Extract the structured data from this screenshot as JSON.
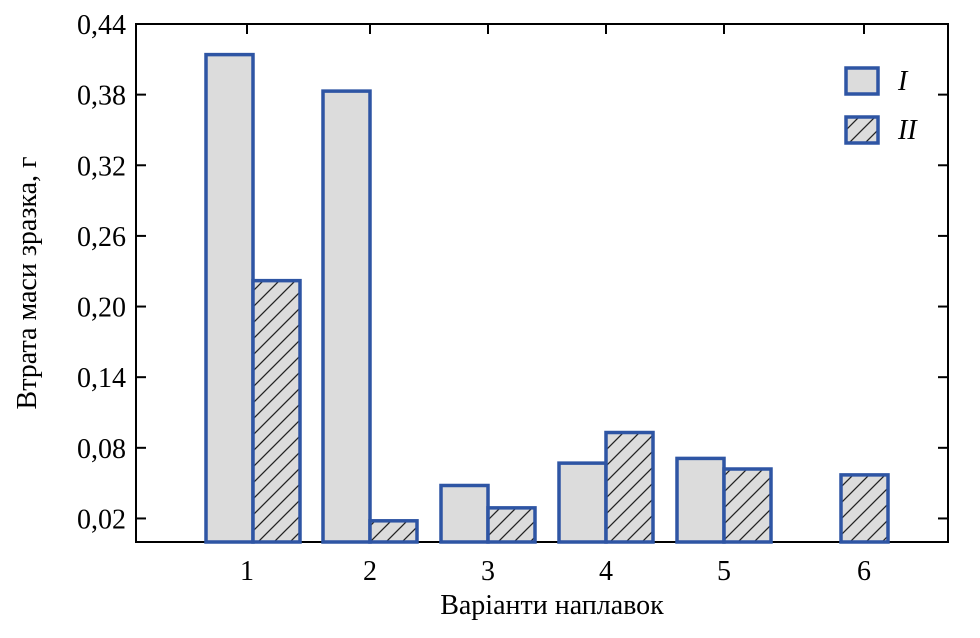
{
  "chart_data": {
    "type": "bar",
    "title": "",
    "xlabel": "Варіанти наплавок",
    "ylabel": "Втрата маси зразка, г",
    "categories": [
      "1",
      "2",
      "3",
      "4",
      "5",
      "6"
    ],
    "ylim": [
      0,
      0.44
    ],
    "yticks": [
      0.02,
      0.08,
      0.14,
      0.2,
      0.26,
      0.32,
      0.38,
      0.44
    ],
    "ytick_labels": [
      "0,02",
      "0,08",
      "0,14",
      "0,20",
      "0,26",
      "0,32",
      "0,38",
      "0,44"
    ],
    "series": [
      {
        "name": "I",
        "values": [
          0.414,
          0.383,
          0.048,
          0.067,
          0.071,
          null
        ],
        "fill": "#dcdcdc",
        "stroke": "#2e55a4",
        "pattern": "solid"
      },
      {
        "name": "II",
        "values": [
          0.222,
          0.018,
          0.029,
          0.093,
          0.062,
          0.057
        ],
        "fill": "#dcdcdc",
        "stroke": "#2e55a4",
        "pattern": "hatched"
      }
    ],
    "legend_position": "top-right",
    "grid": false
  }
}
